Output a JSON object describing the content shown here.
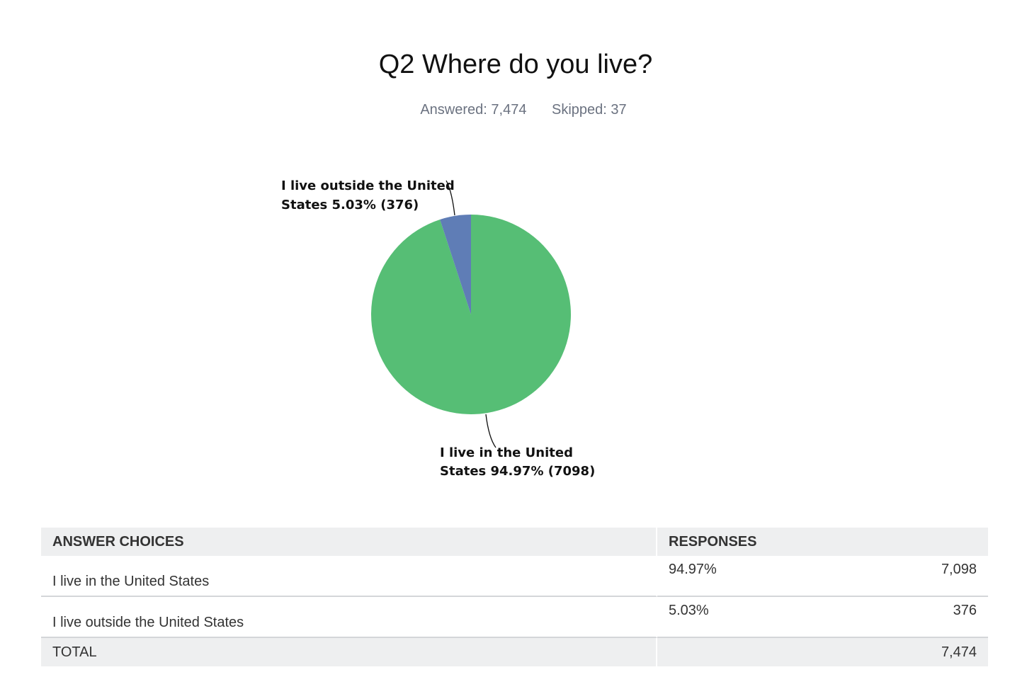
{
  "title": "Q2 Where do you live?",
  "stats": {
    "answered": "Answered: 7,474",
    "skipped": "Skipped: 37"
  },
  "chart_data": {
    "type": "pie",
    "slices": [
      {
        "label_lines": [
          "I live in the United",
          "States 94.97% (7098)"
        ],
        "value": 7098,
        "percent": 94.97,
        "color": "#56be75"
      },
      {
        "label_lines": [
          "I live outside the United",
          "States 5.03% (376)"
        ],
        "value": 376,
        "percent": 5.03,
        "color": "#5f7db6"
      }
    ]
  },
  "table": {
    "headers": [
      "ANSWER CHOICES",
      "RESPONSES"
    ],
    "rows": [
      {
        "choice": "I live in the United States",
        "percent": "94.97%",
        "count": "7,098"
      },
      {
        "choice": "I live outside the United States",
        "percent": "5.03%",
        "count": "376"
      }
    ],
    "total": {
      "label": "TOTAL",
      "count": "7,474"
    }
  }
}
